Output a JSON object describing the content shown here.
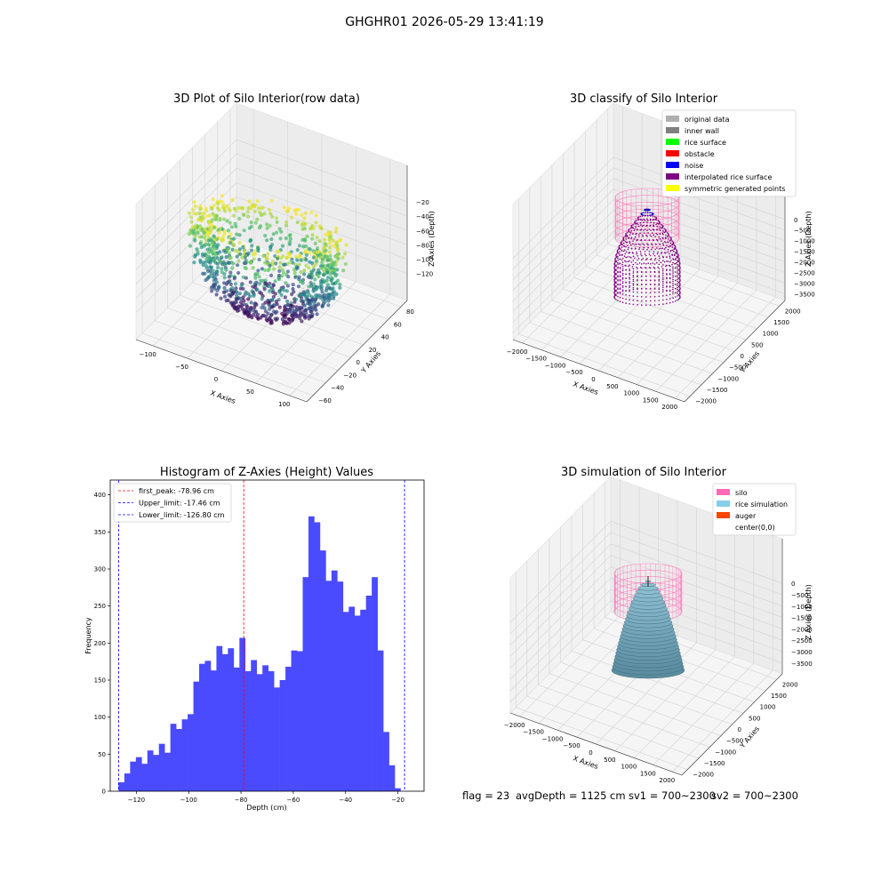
{
  "figure": {
    "suptitle": "GHGHR01 2026-05-29 13:41:19"
  },
  "panels": {
    "raw": {
      "title": "3D Plot of Silo Interior(row data)",
      "xlabel": "X Axies",
      "ylabel": "Y Axies",
      "zlabel": "Z Axies (Depth)",
      "xticks": [
        "−100",
        "−50",
        "0",
        "50",
        "100"
      ],
      "yticks": [
        "−60",
        "−40",
        "−20",
        "0",
        "20",
        "40",
        "60",
        "80"
      ],
      "zticks": [
        "−20",
        "−40",
        "−60",
        "−80",
        "−100",
        "−120"
      ],
      "colormap": "viridis"
    },
    "classify": {
      "title": "3D classify of Silo Interior",
      "xlabel": "X Axies",
      "ylabel": "Y Axies",
      "zlabel": "Z Axies (Depth)",
      "xticks": [
        "−2000",
        "−1500",
        "−1000",
        "−500",
        "0",
        "500",
        "1000",
        "1500",
        "2000"
      ],
      "yticks": [
        "−2000",
        "−1500",
        "−1000",
        "−500",
        "0",
        "500",
        "1000",
        "1500",
        "2000"
      ],
      "zticks": [
        "0",
        "−500",
        "−1000",
        "−1500",
        "−2000",
        "−2500",
        "−3000",
        "−3500"
      ],
      "legend": [
        {
          "label": "original data",
          "color": "#b0b0b0"
        },
        {
          "label": "inner wall",
          "color": "#808080"
        },
        {
          "label": "rice surface",
          "color": "#00ff00"
        },
        {
          "label": "obstacle",
          "color": "#ff0000"
        },
        {
          "label": "noise",
          "color": "#0000ff"
        },
        {
          "label": "interpolated rice surface",
          "color": "#800080"
        },
        {
          "label": "symmetric generated points",
          "color": "#ffff00"
        }
      ]
    },
    "simulation": {
      "title": "3D simulation of Silo Interior",
      "xlabel": "X Axies",
      "ylabel": "Y Axies",
      "zlabel": "Z Axies (Depth)",
      "xticks": [
        "−2000",
        "−1500",
        "−1000",
        "−500",
        "0",
        "500",
        "1000",
        "1500",
        "2000"
      ],
      "yticks": [
        "−2000",
        "−1500",
        "−1000",
        "−500",
        "0",
        "500",
        "1000",
        "1500",
        "2000"
      ],
      "zticks": [
        "0",
        "−500",
        "−1000",
        "−1500",
        "−2000",
        "−2500",
        "−3000",
        "−3500"
      ],
      "legend": [
        {
          "label": "silo",
          "color": "#ff69b4"
        },
        {
          "label": "rice simulation",
          "color": "#87ceeb"
        },
        {
          "label": "auger",
          "color": "#ff4500"
        },
        {
          "label": "center(0,0)",
          "color": "#ffffff"
        }
      ]
    }
  },
  "footer": {
    "flag": "flag = 23",
    "avg_depth": "avgDepth = 1125 cm",
    "sv1": "sv1 = 700~2300",
    "sv2": "sv2 = 700~2300"
  },
  "chart_data": {
    "type": "bar",
    "title": "Histogram of Z-Axies (Height) Values",
    "xlabel": "Depth (cm)",
    "ylabel": "Frequency",
    "xlim": [
      -130,
      -10
    ],
    "ylim": [
      0,
      420
    ],
    "xticks": [
      -120,
      -100,
      -80,
      -60,
      -40,
      -20
    ],
    "yticks": [
      0,
      50,
      100,
      150,
      200,
      250,
      300,
      350,
      400
    ],
    "bar_color": "#4a4aff",
    "bin_start": -126.8,
    "bin_width": 2.2,
    "values": [
      12,
      24,
      40,
      46,
      37,
      55,
      49,
      64,
      52,
      91,
      84,
      97,
      104,
      148,
      172,
      176,
      163,
      196,
      185,
      193,
      167,
      207,
      162,
      177,
      158,
      170,
      162,
      140,
      150,
      168,
      190,
      189,
      289,
      371,
      363,
      325,
      284,
      298,
      283,
      242,
      249,
      237,
      245,
      264,
      289,
      190,
      80,
      35,
      4
    ],
    "lines": [
      {
        "label": "first_peak: -78.96 cm",
        "x": -78.96,
        "color": "#ff0000"
      },
      {
        "label": "Upper_limit: -17.46 cm",
        "x": -17.46,
        "color": "#0000ff"
      },
      {
        "label": "Lower_limit: -126.80 cm",
        "x": -126.8,
        "color": "#0000ff"
      }
    ]
  }
}
